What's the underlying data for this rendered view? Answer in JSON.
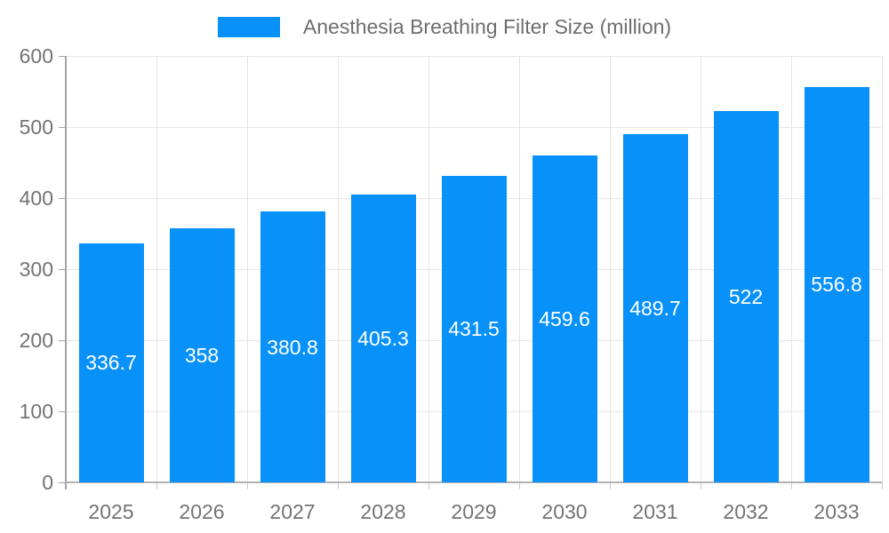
{
  "legend": {
    "label": "Anesthesia Breathing Filter Size (million)"
  },
  "chart_data": {
    "type": "bar",
    "title": "Anesthesia Breathing Filter Size (million)",
    "categories": [
      "2025",
      "2026",
      "2027",
      "2028",
      "2029",
      "2030",
      "2031",
      "2032",
      "2033"
    ],
    "series": [
      {
        "name": "Anesthesia Breathing Filter Size (million)",
        "values": [
          336.7,
          358,
          380.8,
          405.3,
          431.5,
          459.6,
          489.7,
          522,
          556.8
        ]
      }
    ],
    "value_labels": [
      "336.7",
      "358",
      "380.8",
      "405.3",
      "431.5",
      "459.6",
      "489.7",
      "522",
      "556.8"
    ],
    "xlabel": "",
    "ylabel": "",
    "ylim": [
      0,
      600
    ],
    "y_ticks": [
      0,
      100,
      200,
      300,
      400,
      500,
      600
    ],
    "grid": true,
    "legend_position": "top",
    "colors": {
      "bar": "#0891F8",
      "bar_label_text": "#ffffff",
      "axis_line": "#a3a3a3",
      "x_axis_line": "#b3b3b3",
      "grid_line": "#e6e6e6",
      "tick_mark": "#c9c9c9",
      "tick_text": "#737373",
      "legend_text": "#6e6e6e",
      "background": "#ffffff"
    }
  }
}
